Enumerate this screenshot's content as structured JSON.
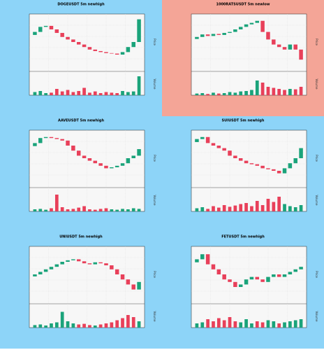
{
  "chart_data": {
    "type": "candlestick",
    "price_label": "Price",
    "volume_label": "Volume",
    "ylim": [
      0,
      100
    ],
    "vlim": [
      0,
      100
    ],
    "up_color": "#1aa37a",
    "down_color": "#e8405a",
    "charts": [
      {
        "title": "DOGEUSDT 5m newhigh",
        "background": "#8dd4f8",
        "open": [
          64,
          70,
          80,
          82,
          75,
          68,
          60,
          55,
          50,
          45,
          40,
          35,
          32,
          30,
          28,
          27,
          25,
          30,
          40,
          50
        ],
        "close": [
          70,
          80,
          82,
          75,
          68,
          60,
          55,
          50,
          45,
          40,
          35,
          32,
          30,
          28,
          27,
          25,
          30,
          40,
          50,
          95
        ],
        "volume": [
          15,
          20,
          10,
          12,
          30,
          18,
          25,
          15,
          20,
          35,
          12,
          18,
          10,
          15,
          12,
          10,
          20,
          15,
          18,
          90
        ]
      },
      {
        "title": "1000RATSUSDT 5m newlow",
        "background": "#f4a597",
        "open": [
          56,
          60,
          65,
          62,
          66,
          64,
          68,
          70,
          75,
          80,
          85,
          88,
          92,
          70,
          55,
          45,
          40,
          35,
          45,
          35
        ],
        "close": [
          60,
          65,
          62,
          66,
          64,
          68,
          70,
          75,
          80,
          85,
          88,
          92,
          70,
          55,
          45,
          40,
          35,
          45,
          35,
          15
        ],
        "volume": [
          8,
          10,
          6,
          12,
          8,
          10,
          15,
          12,
          18,
          20,
          25,
          70,
          60,
          40,
          35,
          30,
          25,
          30,
          28,
          40
        ]
      },
      {
        "title": "AAVEUSDT 5m newhigh",
        "background": "#8dd4f8",
        "open": [
          74,
          80,
          90,
          92,
          90,
          88,
          85,
          75,
          65,
          55,
          50,
          45,
          40,
          35,
          30,
          32,
          35,
          40,
          50,
          55
        ],
        "close": [
          80,
          90,
          92,
          90,
          88,
          85,
          75,
          65,
          55,
          50,
          45,
          40,
          35,
          30,
          32,
          35,
          40,
          50,
          55,
          68
        ],
        "volume": [
          10,
          12,
          8,
          15,
          80,
          20,
          10,
          12,
          18,
          25,
          10,
          8,
          12,
          15,
          10,
          8,
          12,
          10,
          15,
          12
        ]
      },
      {
        "title": "SUIUSDT 5m newhigh",
        "background": "#8dd4f8",
        "open": [
          82,
          88,
          92,
          80,
          75,
          70,
          65,
          55,
          50,
          45,
          40,
          38,
          35,
          30,
          28,
          25,
          20,
          30,
          40,
          50
        ],
        "close": [
          88,
          92,
          80,
          75,
          70,
          65,
          55,
          50,
          45,
          40,
          38,
          35,
          30,
          28,
          25,
          20,
          30,
          40,
          50,
          70
        ],
        "volume": [
          15,
          20,
          12,
          25,
          18,
          30,
          22,
          28,
          35,
          40,
          25,
          50,
          30,
          60,
          45,
          70,
          35,
          25,
          20,
          30
        ]
      },
      {
        "title": "UNIUSDT 5m newhigh",
        "background": "#8dd4f8",
        "open": [
          46,
          50,
          55,
          60,
          65,
          70,
          75,
          78,
          80,
          76,
          72,
          70,
          74,
          72,
          68,
          60,
          50,
          40,
          30,
          20
        ],
        "close": [
          50,
          55,
          60,
          65,
          70,
          75,
          78,
          80,
          76,
          72,
          70,
          74,
          72,
          68,
          60,
          50,
          40,
          30,
          20,
          35
        ],
        "volume": [
          12,
          15,
          10,
          20,
          25,
          75,
          30,
          20,
          15,
          18,
          12,
          10,
          15,
          20,
          25,
          35,
          45,
          60,
          50,
          30
        ]
      },
      {
        "title": "FETUSDT 5m newhigh",
        "background": "#8dd4f8",
        "open": [
          74,
          80,
          90,
          70,
          60,
          50,
          40,
          35,
          25,
          30,
          40,
          45,
          40,
          35,
          45,
          50,
          45,
          50,
          55,
          60
        ],
        "close": [
          80,
          90,
          70,
          60,
          50,
          40,
          35,
          25,
          30,
          40,
          45,
          40,
          35,
          45,
          50,
          45,
          50,
          55,
          60,
          65
        ],
        "volume": [
          20,
          25,
          40,
          30,
          45,
          35,
          50,
          30,
          25,
          40,
          20,
          30,
          25,
          35,
          30,
          20,
          25,
          30,
          35,
          40
        ]
      }
    ]
  }
}
